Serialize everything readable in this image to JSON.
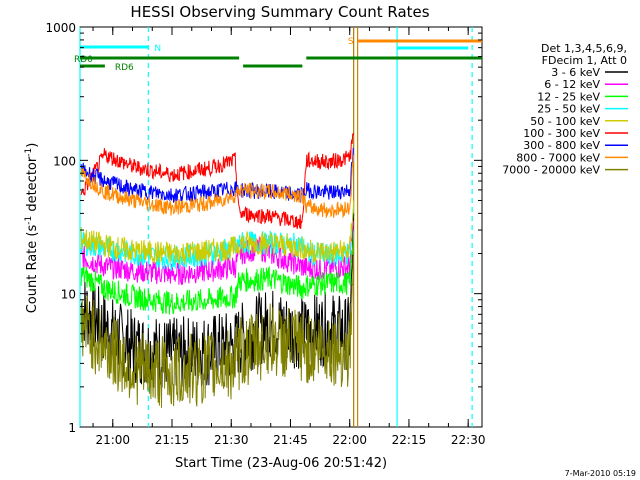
{
  "chart_data": {
    "type": "line",
    "title": "HESSI Observing Summary Count Rates",
    "xlabel": "Start Time (23-Aug-06 20:51:42)",
    "ylabel_main": "Count Rate (s",
    "ylabel_sup1": "-1",
    "ylabel_mid": " detector",
    "ylabel_sup2": "-1",
    "ylabel_end": ")",
    "y_scale": "log",
    "ylim": [
      1,
      1000
    ],
    "xlim": [
      "20:51:42",
      "22:33:30"
    ],
    "x_ticks": [
      "21:00",
      "21:15",
      "21:30",
      "21:45",
      "22:00",
      "22:15",
      "22:30"
    ],
    "y_ticks": [
      "1",
      "10",
      "100",
      "1000"
    ],
    "footer_timestamp": "7-Mar-2010 05:19",
    "legend": {
      "placement": "right",
      "header": [
        "Det 1,3,4,5,6,9,",
        "FDecim 1, Att 0"
      ]
    },
    "series": [
      {
        "name": "3 - 6 keV",
        "color": "#000000",
        "points": [
          [
            "20:52",
            8
          ],
          [
            "20:58",
            5.5
          ],
          [
            "21:05",
            4.0
          ],
          [
            "21:15",
            3.5
          ],
          [
            "21:25",
            3.8
          ],
          [
            "21:31",
            4.0
          ],
          [
            "21:32",
            4.5
          ],
          [
            "21:40",
            6.0
          ],
          [
            "21:48",
            5.0
          ],
          [
            "21:49",
            5.2
          ],
          [
            "21:55",
            5.5
          ],
          [
            "22:00",
            5.0
          ],
          [
            "22:01",
            40
          ]
        ]
      },
      {
        "name": "6 - 12 keV",
        "color": "#ff00ff",
        "points": [
          [
            "20:52",
            19
          ],
          [
            "20:58",
            16
          ],
          [
            "21:05",
            15
          ],
          [
            "21:15",
            14
          ],
          [
            "21:25",
            15
          ],
          [
            "21:31",
            16
          ],
          [
            "21:32",
            20
          ],
          [
            "21:37",
            22
          ],
          [
            "21:40",
            20
          ],
          [
            "21:48",
            16
          ],
          [
            "21:49",
            15.5
          ],
          [
            "21:55",
            15.5
          ],
          [
            "22:00",
            16
          ],
          [
            "22:01",
            35
          ]
        ]
      },
      {
        "name": "12 - 25 keV",
        "color": "#00ff00",
        "points": [
          [
            "20:52",
            14
          ],
          [
            "20:58",
            11
          ],
          [
            "21:05",
            9.5
          ],
          [
            "21:15",
            8.5
          ],
          [
            "21:25",
            9
          ],
          [
            "21:31",
            9.5
          ],
          [
            "21:32",
            12.5
          ],
          [
            "21:40",
            13
          ],
          [
            "21:48",
            11
          ],
          [
            "21:49",
            11.5
          ],
          [
            "21:55",
            12
          ],
          [
            "22:00",
            12
          ],
          [
            "22:01",
            30
          ]
        ]
      },
      {
        "name": "25 - 50 keV",
        "color": "#00ffff",
        "points": [
          [
            "20:52",
            24
          ],
          [
            "20:58",
            22
          ],
          [
            "21:05",
            20
          ],
          [
            "21:15",
            18.5
          ],
          [
            "21:25",
            20
          ],
          [
            "21:31",
            22
          ],
          [
            "21:32",
            24
          ],
          [
            "21:40",
            24
          ],
          [
            "21:48",
            23
          ],
          [
            "21:49",
            20
          ],
          [
            "21:55",
            19.5
          ],
          [
            "22:00",
            20
          ],
          [
            "22:01",
            45
          ]
        ]
      },
      {
        "name": "50 - 100 keV",
        "color": "#cccc00",
        "points": [
          [
            "20:52",
            26
          ],
          [
            "20:58",
            23
          ],
          [
            "21:05",
            21
          ],
          [
            "21:15",
            20
          ],
          [
            "21:25",
            21
          ],
          [
            "21:31",
            22
          ],
          [
            "21:32",
            24
          ],
          [
            "21:40",
            24
          ],
          [
            "21:48",
            22
          ],
          [
            "21:49",
            21
          ],
          [
            "21:55",
            20.5
          ],
          [
            "22:00",
            21
          ],
          [
            "22:01",
            50
          ]
        ]
      },
      {
        "name": "100 - 300 keV",
        "color": "#ff0000",
        "points": [
          [
            "20:52",
            55
          ],
          [
            "20:58",
            110
          ],
          [
            "21:05",
            90
          ],
          [
            "21:15",
            78
          ],
          [
            "21:25",
            88
          ],
          [
            "21:31",
            100
          ],
          [
            "21:32",
            40
          ],
          [
            "21:40",
            38
          ],
          [
            "21:48",
            34
          ],
          [
            "21:49",
            100
          ],
          [
            "21:55",
            97
          ],
          [
            "22:00",
            105
          ],
          [
            "22:01",
            160
          ]
        ]
      },
      {
        "name": "300 - 800 keV",
        "color": "#0000ff",
        "points": [
          [
            "20:52",
            85
          ],
          [
            "20:58",
            70
          ],
          [
            "21:05",
            60
          ],
          [
            "21:15",
            55
          ],
          [
            "21:25",
            58
          ],
          [
            "21:31",
            62
          ],
          [
            "21:32",
            60
          ],
          [
            "21:40",
            58
          ],
          [
            "21:48",
            55
          ],
          [
            "21:49",
            60
          ],
          [
            "21:55",
            57
          ],
          [
            "22:00",
            60
          ],
          [
            "22:01",
            120
          ]
        ]
      },
      {
        "name": "800 - 7000 keV",
        "color": "#ff8800",
        "points": [
          [
            "20:52",
            80
          ],
          [
            "20:58",
            58
          ],
          [
            "21:05",
            50
          ],
          [
            "21:15",
            44
          ],
          [
            "21:25",
            48
          ],
          [
            "21:31",
            55
          ],
          [
            "21:32",
            60
          ],
          [
            "21:40",
            58
          ],
          [
            "21:48",
            55
          ],
          [
            "21:49",
            45
          ],
          [
            "21:55",
            42
          ],
          [
            "22:00",
            44
          ],
          [
            "22:01",
            110
          ]
        ]
      },
      {
        "name": "7000 - 20000 keV",
        "color": "#808000",
        "points": [
          [
            "20:52",
            6
          ],
          [
            "20:58",
            4
          ],
          [
            "21:05",
            2.8
          ],
          [
            "21:15",
            2.5
          ],
          [
            "21:25",
            2.8
          ],
          [
            "21:31",
            3.0
          ],
          [
            "21:32",
            3.5
          ],
          [
            "21:40",
            4.5
          ],
          [
            "21:48",
            4.0
          ],
          [
            "21:49",
            3.8
          ],
          [
            "21:55",
            4.0
          ],
          [
            "22:00",
            3.5
          ],
          [
            "22:01",
            20
          ]
        ]
      }
    ],
    "flags": [
      {
        "label": "N",
        "color": "#00ffff",
        "start": "20:51:42",
        "end": "21:09"
      },
      {
        "label": "RD0",
        "color": "#008000",
        "start": "20:51:42",
        "end": "21:32"
      },
      {
        "label": "RD6",
        "color": "#008000",
        "start": "20:51:42",
        "end": "20:58"
      },
      {
        "label": "",
        "color": "#008000",
        "start": "21:33",
        "end": "21:48"
      },
      {
        "label": "",
        "color": "#008000",
        "start": "21:49",
        "end": "22:33:30"
      },
      {
        "label": "S",
        "color": "#ff8800",
        "start": "22:02",
        "end": "22:33:30"
      },
      {
        "label": "",
        "color": "#00ffff",
        "start": "22:12",
        "end": "22:30"
      }
    ],
    "markers": [
      {
        "time": "20:51:42",
        "color": "#00ffff",
        "style": "solid"
      },
      {
        "time": "21:09",
        "color": "#00ffff",
        "style": "dashed"
      },
      {
        "time": "22:01",
        "color": "#b07800",
        "style": "solid"
      },
      {
        "time": "22:02",
        "color": "#cc8800",
        "style": "solid"
      },
      {
        "time": "22:12",
        "color": "#00ffff",
        "style": "solid"
      },
      {
        "time": "22:31",
        "color": "#00ffff",
        "style": "dashed"
      }
    ]
  }
}
